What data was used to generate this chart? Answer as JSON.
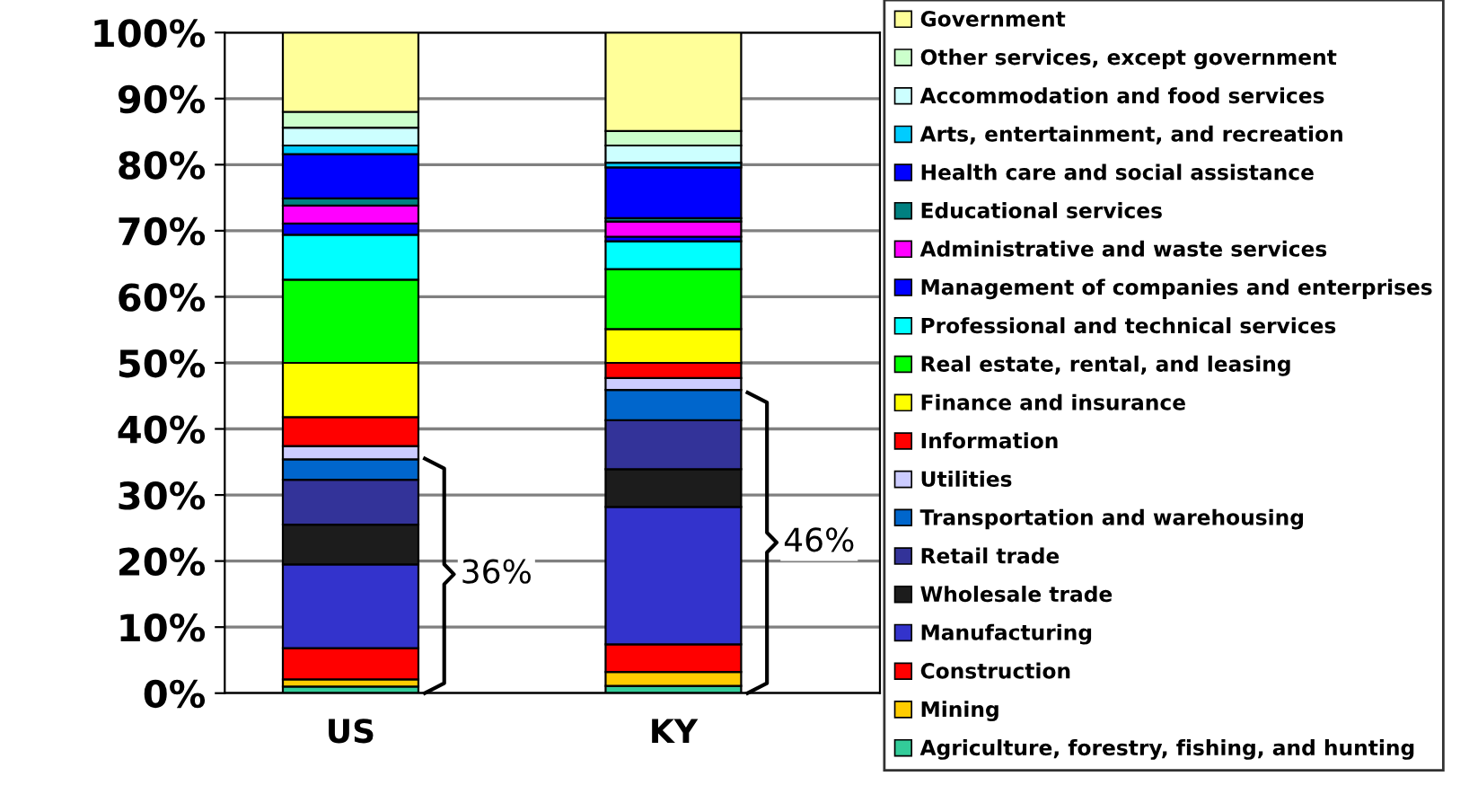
{
  "chart_data": {
    "type": "bar",
    "stacked": true,
    "categories": [
      "US",
      "KY"
    ],
    "ylim": [
      0,
      100
    ],
    "yticks": [
      {
        "value": 0,
        "label": "0%"
      },
      {
        "value": 10,
        "label": "10%"
      },
      {
        "value": 20,
        "label": "20%"
      },
      {
        "value": 30,
        "label": "30%"
      },
      {
        "value": 40,
        "label": "40%"
      },
      {
        "value": 50,
        "label": "50%"
      },
      {
        "value": 60,
        "label": "60%"
      },
      {
        "value": 70,
        "label": "70%"
      },
      {
        "value": 80,
        "label": "80%"
      },
      {
        "value": 90,
        "label": "90%"
      },
      {
        "value": 100,
        "label": "100%"
      }
    ],
    "grid": "y",
    "legend": "right",
    "annotations": [
      "36%",
      "46%"
    ],
    "series": [
      {
        "name": "Agriculture, forestry, fishing, and hunting",
        "color": "#33cc99",
        "values": [
          1.0,
          1.1
        ]
      },
      {
        "name": "Mining",
        "color": "#ffcc00",
        "values": [
          1.1,
          2.1
        ]
      },
      {
        "name": "Construction",
        "color": "#ff0000",
        "values": [
          4.7,
          4.2
        ]
      },
      {
        "name": "Manufacturing",
        "color": "#3333cc",
        "values": [
          12.7,
          20.8
        ]
      },
      {
        "name": "Wholesale trade",
        "color": "#1c1c1c",
        "values": [
          6.0,
          5.7
        ]
      },
      {
        "name": "Retail trade",
        "color": "#333399",
        "values": [
          6.8,
          7.4
        ]
      },
      {
        "name": "Transportation and warehousing",
        "color": "#0066cc",
        "values": [
          3.1,
          4.6
        ]
      },
      {
        "name": "Utilities",
        "color": "#ccccff",
        "values": [
          2.0,
          1.8
        ]
      },
      {
        "name": "Information",
        "color": "#ff0000",
        "values": [
          4.4,
          2.3
        ]
      },
      {
        "name": "Finance and insurance",
        "color": "#ffff00",
        "values": [
          8.2,
          5.1
        ]
      },
      {
        "name": "Real estate, rental, and leasing",
        "color": "#00ff00",
        "values": [
          12.6,
          9.1
        ]
      },
      {
        "name": "Professional and technical services",
        "color": "#00ffff",
        "values": [
          6.8,
          4.2
        ]
      },
      {
        "name": "Management of companies and enterprises",
        "color": "#0000ff",
        "values": [
          1.7,
          0.7
        ]
      },
      {
        "name": "Administrative and waste services",
        "color": "#ff00ff",
        "values": [
          2.7,
          2.3
        ]
      },
      {
        "name": "Educational services",
        "color": "#008080",
        "values": [
          1.1,
          0.5
        ]
      },
      {
        "name": "Health care and social assistance",
        "color": "#0000ff",
        "values": [
          6.7,
          7.7
        ]
      },
      {
        "name": "Arts, entertainment, and recreation",
        "color": "#00ccff",
        "values": [
          1.3,
          0.7
        ]
      },
      {
        "name": "Accommodation and food services",
        "color": "#ccffff",
        "values": [
          2.7,
          2.6
        ]
      },
      {
        "name": "Other services, except government",
        "color": "#ccffcc",
        "values": [
          2.4,
          2.2
        ]
      },
      {
        "name": "Government",
        "color": "#ffff99",
        "values": [
          12.0,
          14.9
        ]
      }
    ]
  }
}
